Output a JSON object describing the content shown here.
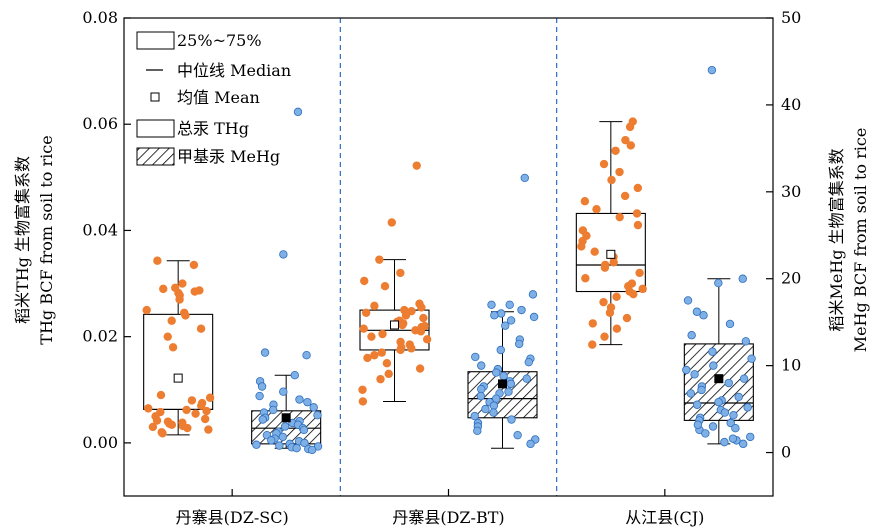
{
  "chart_data": {
    "type": "box",
    "xlabel": "",
    "categories": [
      "丹寨县(DZ-SC)",
      "丹寨县(DZ-BT)",
      "从江县(CJ)"
    ],
    "left_axis": {
      "label_line1": "稻米THg 生物富集系数",
      "label_line2": "THg BCF from soil to rice",
      "ylim": [
        -0.01,
        0.08
      ],
      "ticks": [
        0.0,
        0.02,
        0.04,
        0.06,
        0.08
      ],
      "tick_labels": [
        "0.00",
        "0.02",
        "0.04",
        "0.06",
        "0.08"
      ]
    },
    "right_axis": {
      "label_line1": "稻米MeHg 生物富集系数",
      "label_line2": "MeHg BCF from soil to rice",
      "ylim": [
        -5,
        50
      ],
      "ticks": [
        0,
        10,
        20,
        30,
        40,
        50
      ],
      "tick_labels": [
        "0",
        "10",
        "20",
        "30",
        "40",
        "50"
      ]
    },
    "legend": {
      "position": "top-left",
      "items": [
        {
          "kind": "box",
          "label": "25%~75%"
        },
        {
          "kind": "line",
          "label": "中位线 Median"
        },
        {
          "kind": "square",
          "label": "均值 Mean"
        },
        {
          "kind": "box",
          "label": "总汞 THg"
        },
        {
          "kind": "hatch",
          "label": "甲基汞 MeHg"
        }
      ]
    },
    "colors": {
      "thg_points": "#ED7D31",
      "mehg_points": "#7EB0E6",
      "mehg_points_edge": "#2F6FBF",
      "separator": "#2E6BC7"
    },
    "series": [
      {
        "name": "总汞 THg",
        "axis": "left",
        "boxes": [
          {
            "category": "丹寨县(DZ-SC)",
            "whisker_low": 0.0015,
            "q1": 0.0063,
            "median": 0.0063,
            "q3": 0.0242,
            "whisker_high": 0.0343,
            "mean": 0.0122,
            "points": [
              0.0343,
              0.0335,
              0.03,
              0.0292,
              0.029,
              0.0287,
              0.0285,
              0.0282,
              0.0278,
              0.027,
              0.025,
              0.0245,
              0.024,
              0.023,
              0.0215,
              0.02,
              0.018,
              0.009,
              0.0085,
              0.008,
              0.0075,
              0.007,
              0.0065,
              0.0062,
              0.006,
              0.0058,
              0.0055,
              0.005,
              0.0045,
              0.0042,
              0.004,
              0.0038,
              0.0036,
              0.0034,
              0.0032,
              0.003,
              0.0028,
              0.0025,
              0.002,
              0.0018
            ]
          },
          {
            "category": "丹寨县(DZ-BT)",
            "whisker_low": 0.0078,
            "q1": 0.0175,
            "median": 0.0212,
            "q3": 0.025,
            "whisker_high": 0.0345,
            "mean": 0.0222,
            "points": [
              0.0522,
              0.0415,
              0.0345,
              0.032,
              0.0305,
              0.0295,
              0.0262,
              0.0258,
              0.0255,
              0.025,
              0.0248,
              0.0245,
              0.024,
              0.0235,
              0.023,
              0.0228,
              0.0225,
              0.0222,
              0.022,
              0.0218,
              0.0215,
              0.0212,
              0.021,
              0.0205,
              0.02,
              0.0195,
              0.019,
              0.0185,
              0.018,
              0.0178,
              0.0175,
              0.017,
              0.0165,
              0.016,
              0.015,
              0.014,
              0.013,
              0.012,
              0.01,
              0.0078
            ]
          },
          {
            "category": "从江县(CJ)",
            "whisker_low": 0.0185,
            "q1": 0.0285,
            "median": 0.0335,
            "q3": 0.0432,
            "whisker_high": 0.0605,
            "mean": 0.0355,
            "points": [
              0.0605,
              0.0595,
              0.057,
              0.056,
              0.055,
              0.0525,
              0.051,
              0.0495,
              0.048,
              0.0465,
              0.0455,
              0.044,
              0.0432,
              0.0425,
              0.041,
              0.04,
              0.039,
              0.038,
              0.037,
              0.036,
              0.035,
              0.034,
              0.0335,
              0.033,
              0.032,
              0.031,
              0.03,
              0.0295,
              0.029,
              0.0285,
              0.028,
              0.0275,
              0.0265,
              0.0255,
              0.0245,
              0.0235,
              0.0225,
              0.0215,
              0.02,
              0.0185
            ]
          }
        ]
      },
      {
        "name": "甲基汞 MeHg",
        "axis": "right",
        "boxes": [
          {
            "category": "丹寨县(DZ-SC)",
            "whisker_low": 0.5,
            "q1": 1.0,
            "median": 2.8,
            "q3": 4.8,
            "whisker_high": 8.9,
            "mean": 4.0,
            "points": [
              39.2,
              22.8,
              11.5,
              11.2,
              8.9,
              8.2,
              7.6,
              7.0,
              6.5,
              6.1,
              5.8,
              5.5,
              5.2,
              4.9,
              4.6,
              4.3,
              4.0,
              3.8,
              3.6,
              3.4,
              3.2,
              3.0,
              2.8,
              2.6,
              2.4,
              2.2,
              2.0,
              1.8,
              1.6,
              1.4,
              1.3,
              1.1,
              1.0,
              0.9,
              0.8,
              0.7,
              0.6,
              0.5,
              0.4,
              0.3
            ]
          },
          {
            "category": "丹寨县(DZ-BT)",
            "whisker_low": 0.5,
            "q1": 4.0,
            "median": 6.2,
            "q3": 9.3,
            "whisker_high": 16.2,
            "mean": 7.9,
            "points": [
              31.6,
              18.2,
              17.0,
              17.0,
              16.4,
              16.0,
              15.8,
              15.6,
              15.2,
              14.6,
              13.0,
              12.5,
              11.8,
              11.0,
              10.8,
              10.4,
              10.0,
              9.6,
              9.2,
              8.8,
              8.5,
              8.2,
              7.9,
              7.6,
              7.3,
              7.0,
              6.8,
              6.5,
              6.2,
              5.8,
              5.4,
              5.0,
              4.6,
              4.2,
              3.8,
              3.4,
              3.0,
              2.5,
              2.0,
              1.5,
              1.0
            ]
          },
          {
            "category": "从江县(CJ)",
            "whisker_low": 1.0,
            "q1": 3.7,
            "median": 5.7,
            "q3": 12.5,
            "whisker_high": 20.0,
            "mean": 8.5,
            "points": [
              44.0,
              20.0,
              19.5,
              17.5,
              16.2,
              15.8,
              14.8,
              13.5,
              12.8,
              11.6,
              10.8,
              10.0,
              9.5,
              9.0,
              8.5,
              8.0,
              7.6,
              7.2,
              6.8,
              6.4,
              6.0,
              5.8,
              5.5,
              5.2,
              4.9,
              4.6,
              4.3,
              4.0,
              3.7,
              3.4,
              3.0,
              2.6,
              2.2,
              1.8,
              1.4,
              1.0,
              1.2,
              1.6,
              2.8,
              3.2
            ]
          }
        ]
      }
    ]
  }
}
